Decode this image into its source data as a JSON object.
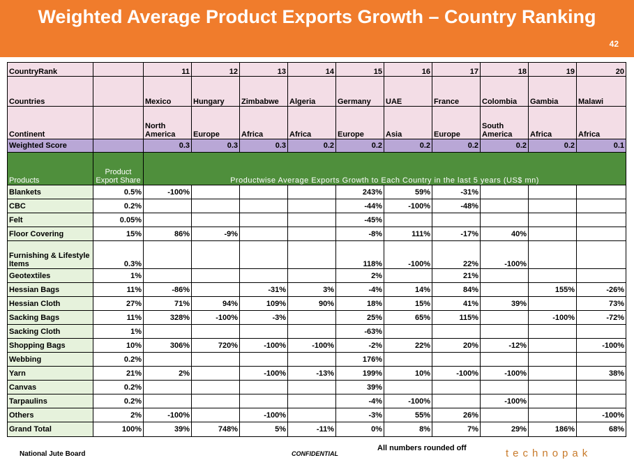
{
  "title": "Weighted Average Product Exports Growth – Country Ranking",
  "page_number": "42",
  "header": {
    "rank_label": "CountryRank",
    "countries_label": "Countries",
    "continent_label": "Continent",
    "score_label": "Weighted Score",
    "ranks": [
      "11",
      "12",
      "13",
      "14",
      "15",
      "16",
      "17",
      "18",
      "19",
      "20"
    ],
    "countries": [
      "Mexico",
      "Hungary",
      "Zimbabwe",
      "Algeria",
      "Germany",
      "UAE",
      "France",
      "Colombia",
      "Gambia",
      "Malawi"
    ],
    "continents": [
      "North America",
      "Europe",
      "Africa",
      "Africa",
      "Europe",
      "Asia",
      "Europe",
      "South America",
      "Africa",
      "Africa"
    ],
    "scores": [
      "0.3",
      "0.3",
      "0.3",
      "0.2",
      "0.2",
      "0.2",
      "0.2",
      "0.2",
      "0.2",
      "0.1"
    ]
  },
  "products_header": {
    "products_label": "Products",
    "share_label": "Product Export Share",
    "span_label": "Productwise Average Exports Growth to Each Country  in the last 5 years (US$ mn)"
  },
  "rows": [
    {
      "product": "Blankets",
      "share": "0.5%",
      "values": [
        "-100%",
        "",
        "",
        "",
        "243%",
        "59%",
        "-31%",
        "",
        "",
        ""
      ]
    },
    {
      "product": "CBC",
      "share": "0.2%",
      "values": [
        "",
        "",
        "",
        "",
        "-44%",
        "-100%",
        "-48%",
        "",
        "",
        ""
      ]
    },
    {
      "product": "Felt",
      "share": "0.05%",
      "values": [
        "",
        "",
        "",
        "",
        "-45%",
        "",
        "",
        "",
        "",
        ""
      ]
    },
    {
      "product": "Floor Covering",
      "share": "15%",
      "values": [
        "86%",
        "-9%",
        "",
        "",
        "-8%",
        "111%",
        "-17%",
        "40%",
        "",
        ""
      ]
    },
    {
      "product": "Furnishing & Lifestyle Items",
      "share": "0.3%",
      "values": [
        "",
        "",
        "",
        "",
        "118%",
        "-100%",
        "22%",
        "-100%",
        "",
        ""
      ]
    },
    {
      "product": "Geotextiles",
      "share": "1%",
      "values": [
        "",
        "",
        "",
        "",
        "2%",
        "",
        "21%",
        "",
        "",
        ""
      ]
    },
    {
      "product": "Hessian Bags",
      "share": "11%",
      "values": [
        "-86%",
        "",
        "-31%",
        "3%",
        "-4%",
        "14%",
        "84%",
        "",
        "155%",
        "-26%"
      ]
    },
    {
      "product": "Hessian Cloth",
      "share": "27%",
      "values": [
        "71%",
        "94%",
        "109%",
        "90%",
        "18%",
        "15%",
        "41%",
        "39%",
        "",
        "73%"
      ]
    },
    {
      "product": "Sacking Bags",
      "share": "11%",
      "values": [
        "328%",
        "-100%",
        "-3%",
        "",
        "25%",
        "65%",
        "115%",
        "",
        "-100%",
        "-72%"
      ]
    },
    {
      "product": "Sacking Cloth",
      "share": "1%",
      "values": [
        "",
        "",
        "",
        "",
        "-63%",
        "",
        "",
        "",
        "",
        ""
      ]
    },
    {
      "product": "Shopping Bags",
      "share": "10%",
      "values": [
        "306%",
        "720%",
        "-100%",
        "-100%",
        "-2%",
        "22%",
        "20%",
        "-12%",
        "",
        "-100%"
      ]
    },
    {
      "product": "Webbing",
      "share": "0.2%",
      "values": [
        "",
        "",
        "",
        "",
        "176%",
        "",
        "",
        "",
        "",
        ""
      ]
    },
    {
      "product": "Yarn",
      "share": "21%",
      "values": [
        "2%",
        "",
        "-100%",
        "-13%",
        "199%",
        "10%",
        "-100%",
        "-100%",
        "",
        "38%"
      ]
    },
    {
      "product": "Canvas",
      "share": "0.2%",
      "values": [
        "",
        "",
        "",
        "",
        "39%",
        "",
        "",
        "",
        "",
        ""
      ]
    },
    {
      "product": "Tarpaulins",
      "share": "0.2%",
      "values": [
        "",
        "",
        "",
        "",
        "-4%",
        "-100%",
        "",
        "-100%",
        "",
        ""
      ]
    },
    {
      "product": "Others",
      "share": "2%",
      "values": [
        "-100%",
        "",
        "-100%",
        "",
        "-3%",
        "55%",
        "26%",
        "",
        "",
        "-100%"
      ]
    }
  ],
  "total": {
    "product": "Grand Total",
    "share": "100%",
    "values": [
      "39%",
      "748%",
      "5%",
      "-11%",
      "0%",
      "8%",
      "7%",
      "29%",
      "186%",
      "68%"
    ]
  },
  "footer": {
    "left": "National Jute Board",
    "middle": "CONFIDENTIAL",
    "note": "All numbers rounded off",
    "brand": "technopak"
  }
}
